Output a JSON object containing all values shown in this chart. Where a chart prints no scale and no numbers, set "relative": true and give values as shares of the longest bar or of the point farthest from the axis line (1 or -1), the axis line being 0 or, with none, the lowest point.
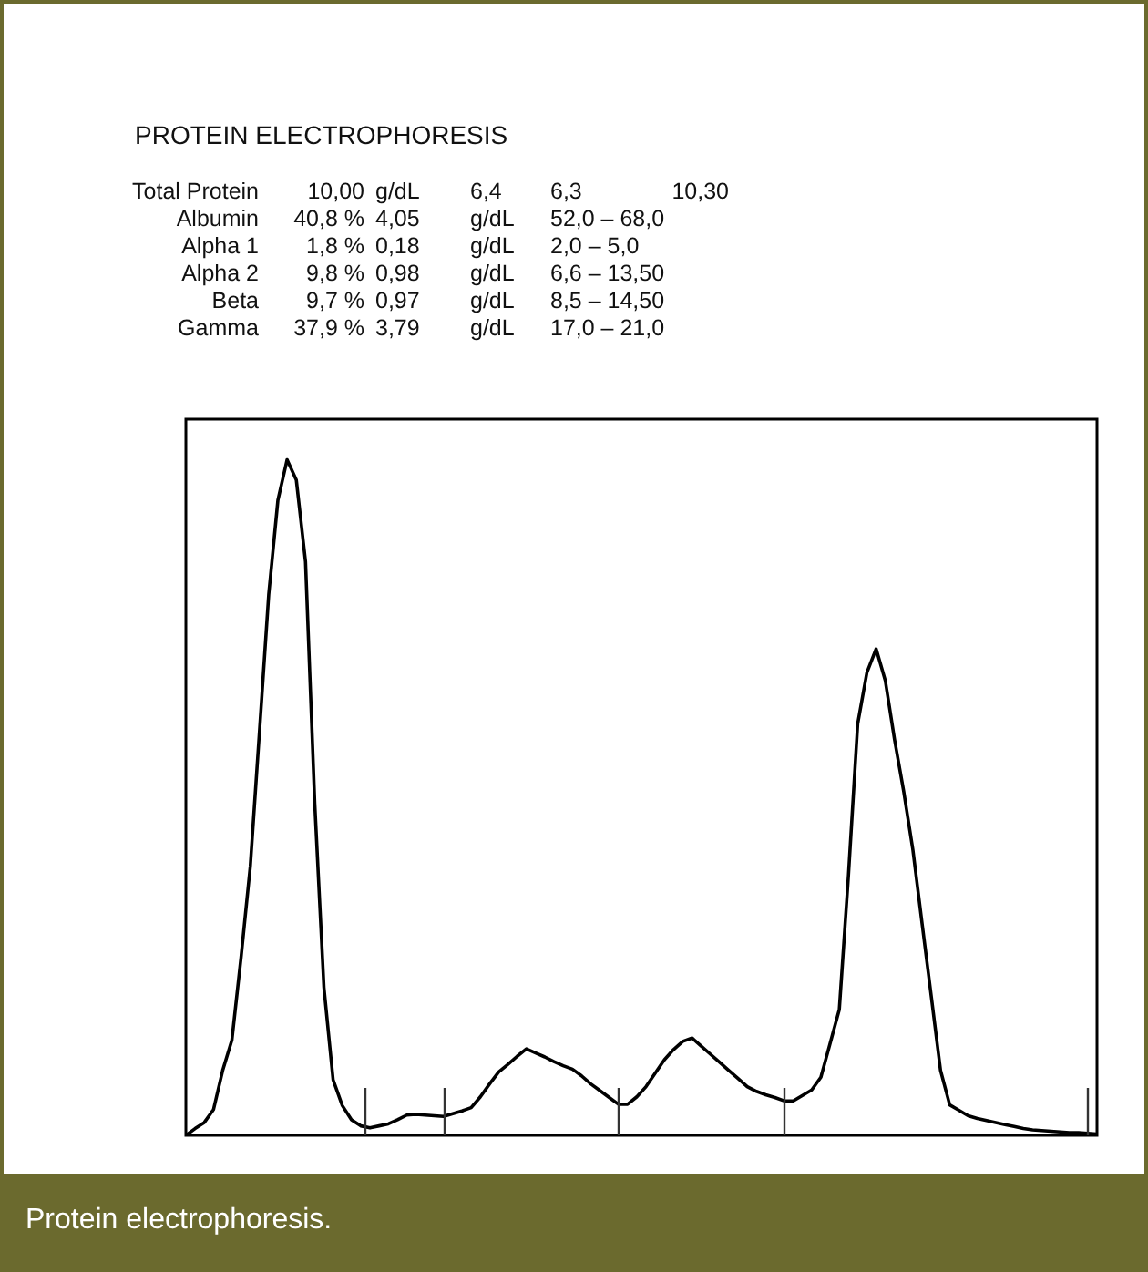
{
  "chart_data": {
    "type": "line",
    "title": "PROTEIN ELECTROPHORESIS",
    "annotations": [
      "Total Protein  10,00  g/dL    6,4  6,3  10,30",
      "Albumin  40,8 %  4,05  g/dL  52,0 – 68,0",
      "Alpha 1  1,8 %  0,18  g/dL  2,0 – 5,0",
      "Alpha 2  9,8 %  0,98  g/dL  6,6 – 13,50",
      "Beta  9,7 %  0,97  g/dL  8,5 – 14,50",
      "Gamma  37,9 %  3,79  g/dL  17,0 – 21,0",
      "Protein electrophoresis."
    ],
    "relative": true,
    "categories": [
      null,
      null,
      null,
      null,
      null,
      null,
      null,
      null,
      null,
      null,
      null,
      null,
      null,
      null,
      null,
      null,
      null,
      null,
      null,
      null,
      null,
      null,
      null,
      null,
      null,
      null,
      null,
      null,
      null,
      null,
      null,
      null,
      null,
      null,
      null,
      null,
      null,
      null,
      null,
      null,
      null,
      null,
      null,
      null,
      null,
      null,
      null,
      null,
      null,
      null,
      null,
      null,
      null,
      null,
      null,
      null,
      null,
      null,
      null,
      null,
      null,
      null,
      null,
      null,
      null,
      null,
      null,
      null,
      null,
      null,
      null,
      null,
      null,
      null,
      null,
      null,
      null,
      null,
      null,
      null,
      null,
      null,
      null,
      null,
      null,
      null,
      null,
      null,
      null,
      null,
      null,
      null,
      null,
      null,
      null,
      null,
      null,
      null,
      null,
      null
    ],
    "values": [
      0,
      0.01,
      0.019,
      0.038,
      0.096,
      0.141,
      0.264,
      0.398,
      0.598,
      0.8,
      0.94,
      1,
      0.97,
      0.849,
      0.492,
      0.219,
      0.082,
      0.044,
      0.023,
      0.014,
      0.011,
      0.014,
      0.017,
      0.023,
      0.03,
      0.031,
      0.03,
      0.029,
      0.028,
      0.032,
      0.036,
      0.041,
      0.057,
      0.076,
      0.094,
      0.105,
      0.117,
      0.128,
      0.122,
      0.116,
      0.109,
      0.103,
      0.098,
      0.088,
      0.076,
      0.066,
      0.056,
      0.046,
      0.046,
      0.057,
      0.072,
      0.092,
      0.112,
      0.127,
      0.139,
      0.144,
      0.132,
      0.12,
      0.108,
      0.096,
      0.084,
      0.072,
      0.065,
      0.06,
      0.056,
      0.051,
      0.051,
      0.059,
      0.067,
      0.086,
      0.136,
      0.186,
      0.386,
      0.609,
      0.685,
      0.72,
      0.673,
      0.586,
      0.509,
      0.422,
      0.313,
      0.205,
      0.096,
      0.045,
      0.037,
      0.029,
      0.025,
      0.022,
      0.019,
      0.016,
      0.013,
      0.01,
      0.008,
      0.007,
      0.006,
      0.005,
      0.004,
      0.004,
      0.003,
      0.002
    ],
    "color": "#000000"
  }
}
